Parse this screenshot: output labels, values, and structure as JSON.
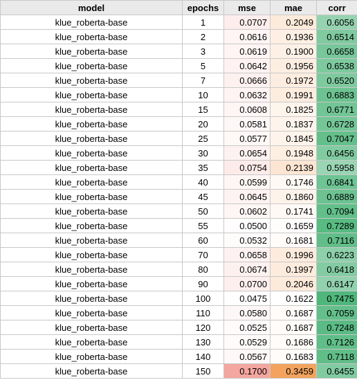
{
  "headers": [
    "model",
    "epochs",
    "mse",
    "mae",
    "corr"
  ],
  "colors": {
    "header_bg": "#eaeaea",
    "mse_high": "#f4a6a0",
    "mae_high": "#f3a35e",
    "corr_high": "#4fb77b",
    "corr_low": "#9ad5b4"
  },
  "rows": [
    {
      "model": "klue_roberta-base",
      "epochs": "1",
      "mse": "0.0707",
      "mae": "0.2049",
      "corr": "0.6056"
    },
    {
      "model": "klue_roberta-base",
      "epochs": "2",
      "mse": "0.0616",
      "mae": "0.1936",
      "corr": "0.6514"
    },
    {
      "model": "klue_roberta-base",
      "epochs": "3",
      "mse": "0.0619",
      "mae": "0.1900",
      "corr": "0.6658"
    },
    {
      "model": "klue_roberta-base",
      "epochs": "5",
      "mse": "0.0642",
      "mae": "0.1956",
      "corr": "0.6538"
    },
    {
      "model": "klue_roberta-base",
      "epochs": "7",
      "mse": "0.0666",
      "mae": "0.1972",
      "corr": "0.6520"
    },
    {
      "model": "klue_roberta-base",
      "epochs": "10",
      "mse": "0.0632",
      "mae": "0.1991",
      "corr": "0.6883"
    },
    {
      "model": "klue_roberta-base",
      "epochs": "15",
      "mse": "0.0608",
      "mae": "0.1825",
      "corr": "0.6771"
    },
    {
      "model": "klue_roberta-base",
      "epochs": "20",
      "mse": "0.0581",
      "mae": "0.1837",
      "corr": "0.6728"
    },
    {
      "model": "klue_roberta-base",
      "epochs": "25",
      "mse": "0.0577",
      "mae": "0.1845",
      "corr": "0.7047"
    },
    {
      "model": "klue_roberta-base",
      "epochs": "30",
      "mse": "0.0654",
      "mae": "0.1948",
      "corr": "0.6456"
    },
    {
      "model": "klue_roberta-base",
      "epochs": "35",
      "mse": "0.0754",
      "mae": "0.2139",
      "corr": "0.5958"
    },
    {
      "model": "klue_roberta-base",
      "epochs": "40",
      "mse": "0.0599",
      "mae": "0.1746",
      "corr": "0.6841"
    },
    {
      "model": "klue_roberta-base",
      "epochs": "45",
      "mse": "0.0645",
      "mae": "0.1860",
      "corr": "0.6889"
    },
    {
      "model": "klue_roberta-base",
      "epochs": "50",
      "mse": "0.0602",
      "mae": "0.1741",
      "corr": "0.7094"
    },
    {
      "model": "klue_roberta-base",
      "epochs": "55",
      "mse": "0.0500",
      "mae": "0.1659",
      "corr": "0.7289"
    },
    {
      "model": "klue_roberta-base",
      "epochs": "60",
      "mse": "0.0532",
      "mae": "0.1681",
      "corr": "0.7116"
    },
    {
      "model": "klue_roberta-base",
      "epochs": "70",
      "mse": "0.0658",
      "mae": "0.1996",
      "corr": "0.6223"
    },
    {
      "model": "klue_roberta-base",
      "epochs": "80",
      "mse": "0.0674",
      "mae": "0.1997",
      "corr": "0.6418"
    },
    {
      "model": "klue_roberta-base",
      "epochs": "90",
      "mse": "0.0700",
      "mae": "0.2046",
      "corr": "0.6147"
    },
    {
      "model": "klue_roberta-base",
      "epochs": "100",
      "mse": "0.0475",
      "mae": "0.1622",
      "corr": "0.7475"
    },
    {
      "model": "klue_roberta-base",
      "epochs": "110",
      "mse": "0.0580",
      "mae": "0.1687",
      "corr": "0.7059"
    },
    {
      "model": "klue_roberta-base",
      "epochs": "120",
      "mse": "0.0525",
      "mae": "0.1687",
      "corr": "0.7248"
    },
    {
      "model": "klue_roberta-base",
      "epochs": "130",
      "mse": "0.0529",
      "mae": "0.1686",
      "corr": "0.7126"
    },
    {
      "model": "klue_roberta-base",
      "epochs": "140",
      "mse": "0.0567",
      "mae": "0.1683",
      "corr": "0.7118"
    },
    {
      "model": "klue_roberta-base",
      "epochs": "150",
      "mse": "0.1700",
      "mae": "0.3459",
      "corr": "0.6455"
    }
  ]
}
